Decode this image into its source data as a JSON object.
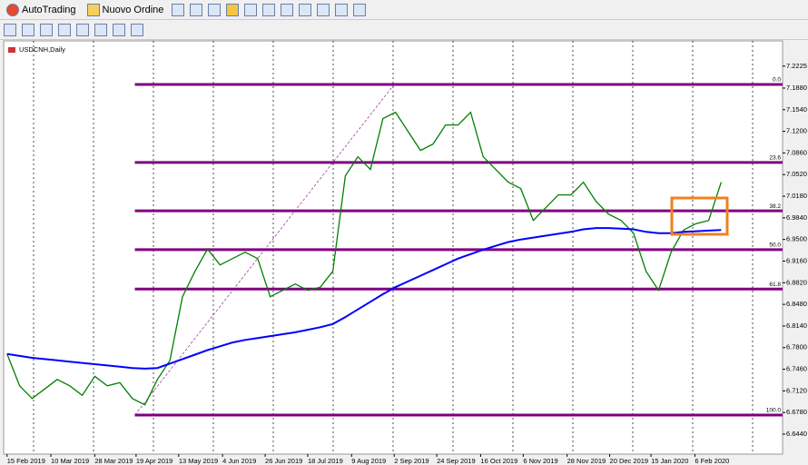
{
  "toolbar": {
    "buttons": [
      "AutoTrading",
      "Nuovo Ordine"
    ]
  },
  "chart_data": {
    "type": "line",
    "title": "USDCNH,Daily",
    "xlim": [
      -0.2,
      61.9
    ],
    "xticks": [
      {
        "value": 0,
        "label": "15 Feb 2019"
      },
      {
        "value": 3.5,
        "label": "10 Mar 2019"
      },
      {
        "value": 7,
        "label": "28 Mar 2019"
      },
      {
        "value": 10.3,
        "label": "19 Apr 2019"
      },
      {
        "value": 13.7,
        "label": "13 May 2019"
      },
      {
        "value": 17.2,
        "label": "4 Jun 2019"
      },
      {
        "value": 20.6,
        "label": "26 Jun 2019"
      },
      {
        "value": 24,
        "label": "18 Jul 2019"
      },
      {
        "value": 27.5,
        "label": "9 Aug 2019"
      },
      {
        "value": 30.9,
        "label": "2 Sep 2019"
      },
      {
        "value": 34.3,
        "label": "24 Sep 2019"
      },
      {
        "value": 37.8,
        "label": "16 Oct 2019"
      },
      {
        "value": 41.2,
        "label": "6 Nov 2019"
      },
      {
        "value": 44.7,
        "label": "28 Nov 2019"
      },
      {
        "value": 48.1,
        "label": "20 Dec 2019"
      },
      {
        "value": 51.4,
        "label": "15 Jan 2020"
      },
      {
        "value": 54.9,
        "label": "6 Feb 2020"
      }
    ],
    "ylim": [
      6.6126,
      7.2622
    ],
    "yticks": [
      {
        "value": 7.2225,
        "label": "7.2225"
      },
      {
        "value": 7.188,
        "label": "7.1880"
      },
      {
        "value": 7.154,
        "label": "7.1540"
      },
      {
        "value": 7.12,
        "label": "7.1200"
      },
      {
        "value": 7.086,
        "label": "7.0860"
      },
      {
        "value": 7.052,
        "label": "7.0520"
      },
      {
        "value": 7.018,
        "label": "7.0180"
      },
      {
        "value": 6.984,
        "label": "6.9840"
      },
      {
        "value": 6.95,
        "label": "6.9500"
      },
      {
        "value": 6.916,
        "label": "6.9160"
      },
      {
        "value": 6.882,
        "label": "6.8820"
      },
      {
        "value": 6.848,
        "label": "6.8480"
      },
      {
        "value": 6.814,
        "label": "6.8140"
      },
      {
        "value": 6.78,
        "label": "6.7800"
      },
      {
        "value": 6.746,
        "label": "6.7460"
      },
      {
        "value": 6.712,
        "label": "6.7120"
      },
      {
        "value": 6.678,
        "label": "6.6780"
      },
      {
        "value": 6.644,
        "label": "6.6440"
      }
    ],
    "series": [
      {
        "color": "#008000",
        "values": [
          6.77,
          6.72,
          6.7,
          6.715,
          6.73,
          6.72,
          6.705,
          6.735,
          6.72,
          6.725,
          6.7,
          6.69,
          6.73,
          6.76,
          6.86,
          6.9,
          6.935,
          6.91,
          6.92,
          6.93,
          6.92,
          6.86,
          6.87,
          6.88,
          6.87,
          6.875,
          6.9,
          7.05,
          7.08,
          7.06,
          7.14,
          7.15,
          7.12,
          7.09,
          7.1,
          7.13,
          7.13,
          7.15,
          7.08,
          7.06,
          7.04,
          7.03,
          6.98,
          7.0,
          7.02,
          7.02,
          7.04,
          7.01,
          6.99,
          6.98,
          6.96,
          6.9,
          6.87,
          6.93,
          6.965,
          6.975,
          6.98,
          7.04
        ]
      },
      {
        "color": "#0000ff",
        "values": [
          6.77,
          6.767,
          6.764,
          6.762,
          6.76,
          6.758,
          6.756,
          6.754,
          6.752,
          6.75,
          6.748,
          6.747,
          6.748,
          6.755,
          6.762,
          6.769,
          6.776,
          6.782,
          6.788,
          6.792,
          6.795,
          6.798,
          6.801,
          6.804,
          6.808,
          6.812,
          6.817,
          6.828,
          6.84,
          6.852,
          6.864,
          6.875,
          6.884,
          6.893,
          6.902,
          6.911,
          6.92,
          6.927,
          6.934,
          6.94,
          6.946,
          6.95,
          6.953,
          6.956,
          6.959,
          6.962,
          6.966,
          6.968,
          6.968,
          6.967,
          6.966,
          6.962,
          6.96,
          6.96,
          6.962,
          6.963,
          6.964,
          6.965
        ]
      }
    ],
    "fib_levels": [
      {
        "label": "0.0",
        "value": 7.1937
      },
      {
        "label": "23.6",
        "value": 7.071
      },
      {
        "label": "38.2",
        "value": 6.995
      },
      {
        "label": "50.0",
        "value": 6.934
      },
      {
        "label": "61.8",
        "value": 6.872
      },
      {
        "label": "100.0",
        "value": 6.674
      }
    ],
    "fib_color": "#800080"
  }
}
